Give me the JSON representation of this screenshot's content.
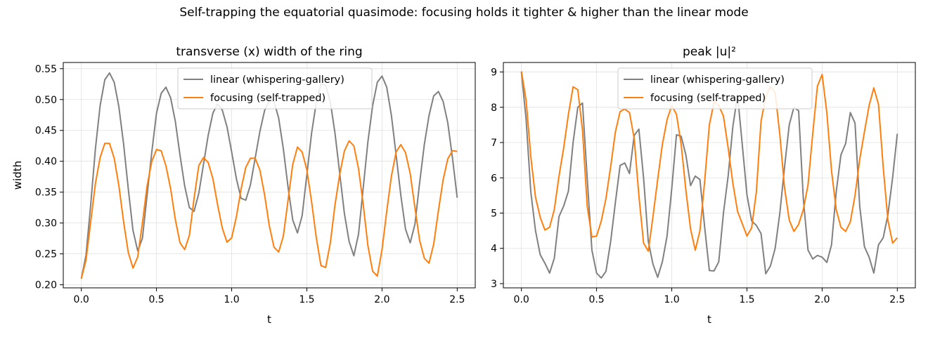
{
  "figure": {
    "title": "Self-trapping the equatorial quasimode: focusing holds it tighter & higher than the linear mode"
  },
  "colors": {
    "linear": "#808080",
    "focusing": "#ff7f0e",
    "grid": "#e0e0e0"
  },
  "chart_data": [
    {
      "type": "line",
      "title": "transverse (x) width of the ring",
      "xlabel": "t",
      "ylabel": "width",
      "xlim": [
        -0.12,
        2.62
      ],
      "ylim": [
        0.195,
        0.56
      ],
      "xticks": [
        0.0,
        0.5,
        1.0,
        1.5,
        2.0,
        2.5
      ],
      "xtick_labels": [
        "0.0",
        "0.5",
        "1.0",
        "1.5",
        "2.0",
        "2.5"
      ],
      "yticks": [
        0.2,
        0.25,
        0.3,
        0.35,
        0.4,
        0.45,
        0.5,
        0.55
      ],
      "ytick_labels": [
        "0.20",
        "0.25",
        "0.30",
        "0.35",
        "0.40",
        "0.45",
        "0.50",
        "0.55"
      ],
      "grid": true,
      "legend": "top-center",
      "series": [
        {
          "name": "linear (whispering-gallery)",
          "x": [
            0.0,
            0.03125,
            0.0625,
            0.09375,
            0.125,
            0.15625,
            0.1875,
            0.21875,
            0.25,
            0.28125,
            0.3125,
            0.34375,
            0.375,
            0.40625,
            0.4375,
            0.46875,
            0.5,
            0.53125,
            0.5625,
            0.59375,
            0.625,
            0.65625,
            0.6875,
            0.71875,
            0.75,
            0.78125,
            0.8125,
            0.84375,
            0.875,
            0.90625,
            0.9375,
            0.96875,
            1.0,
            1.03125,
            1.0625,
            1.09375,
            1.125,
            1.15625,
            1.1875,
            1.21875,
            1.25,
            1.28125,
            1.3125,
            1.34375,
            1.375,
            1.40625,
            1.4375,
            1.46875,
            1.5,
            1.53125,
            1.5625,
            1.59375,
            1.625,
            1.65625,
            1.6875,
            1.71875,
            1.75,
            1.78125,
            1.8125,
            1.84375,
            1.875,
            1.90625,
            1.9375,
            1.96875,
            2.0,
            2.03125,
            2.0625,
            2.09375,
            2.125,
            2.15625,
            2.1875,
            2.21875,
            2.25,
            2.28125,
            2.3125,
            2.34375,
            2.375,
            2.40625,
            2.4375,
            2.46875,
            2.5
          ],
          "values": [
            0.21,
            0.248,
            0.33,
            0.42,
            0.49,
            0.532,
            0.543,
            0.528,
            0.488,
            0.428,
            0.355,
            0.288,
            0.255,
            0.275,
            0.345,
            0.415,
            0.478,
            0.51,
            0.52,
            0.503,
            0.465,
            0.41,
            0.36,
            0.325,
            0.319,
            0.348,
            0.395,
            0.442,
            0.478,
            0.493,
            0.483,
            0.456,
            0.415,
            0.372,
            0.34,
            0.337,
            0.362,
            0.405,
            0.448,
            0.482,
            0.499,
            0.497,
            0.47,
            0.42,
            0.358,
            0.305,
            0.284,
            0.312,
            0.378,
            0.445,
            0.495,
            0.525,
            0.523,
            0.496,
            0.445,
            0.38,
            0.315,
            0.27,
            0.247,
            0.282,
            0.357,
            0.432,
            0.49,
            0.528,
            0.538,
            0.52,
            0.474,
            0.41,
            0.345,
            0.29,
            0.268,
            0.298,
            0.365,
            0.427,
            0.474,
            0.506,
            0.513,
            0.497,
            0.462,
            0.405,
            0.341
          ]
        },
        {
          "name": "focusing (self-trapped)",
          "x": [
            0.0,
            0.03125,
            0.0625,
            0.09375,
            0.125,
            0.15625,
            0.1875,
            0.21875,
            0.25,
            0.28125,
            0.3125,
            0.34375,
            0.375,
            0.40625,
            0.4375,
            0.46875,
            0.5,
            0.53125,
            0.5625,
            0.59375,
            0.625,
            0.65625,
            0.6875,
            0.71875,
            0.75,
            0.78125,
            0.8125,
            0.84375,
            0.875,
            0.90625,
            0.9375,
            0.96875,
            1.0,
            1.03125,
            1.0625,
            1.09375,
            1.125,
            1.15625,
            1.1875,
            1.21875,
            1.25,
            1.28125,
            1.3125,
            1.34375,
            1.375,
            1.40625,
            1.4375,
            1.46875,
            1.5,
            1.53125,
            1.5625,
            1.59375,
            1.625,
            1.65625,
            1.6875,
            1.71875,
            1.75,
            1.78125,
            1.8125,
            1.84375,
            1.875,
            1.90625,
            1.9375,
            1.96875,
            2.0,
            2.03125,
            2.0625,
            2.09375,
            2.125,
            2.15625,
            2.1875,
            2.21875,
            2.25,
            2.28125,
            2.3125,
            2.34375,
            2.375,
            2.40625,
            2.4375,
            2.46875,
            2.5
          ],
          "values": [
            0.21,
            0.24,
            0.302,
            0.364,
            0.406,
            0.429,
            0.429,
            0.405,
            0.36,
            0.302,
            0.252,
            0.227,
            0.245,
            0.3,
            0.36,
            0.4,
            0.419,
            0.417,
            0.393,
            0.356,
            0.306,
            0.268,
            0.257,
            0.28,
            0.34,
            0.393,
            0.406,
            0.398,
            0.372,
            0.33,
            0.292,
            0.269,
            0.276,
            0.31,
            0.355,
            0.39,
            0.405,
            0.405,
            0.386,
            0.346,
            0.296,
            0.261,
            0.253,
            0.279,
            0.337,
            0.395,
            0.423,
            0.415,
            0.386,
            0.335,
            0.277,
            0.231,
            0.228,
            0.268,
            0.33,
            0.379,
            0.417,
            0.433,
            0.425,
            0.388,
            0.33,
            0.263,
            0.222,
            0.214,
            0.257,
            0.319,
            0.376,
            0.415,
            0.427,
            0.414,
            0.38,
            0.325,
            0.272,
            0.243,
            0.235,
            0.266,
            0.32,
            0.37,
            0.404,
            0.417,
            0.416
          ]
        }
      ]
    },
    {
      "type": "line",
      "title": "peak |u|²",
      "xlabel": "t",
      "ylabel": "",
      "xlim": [
        -0.12,
        2.62
      ],
      "ylim": [
        2.88,
        9.27
      ],
      "xticks": [
        0.0,
        0.5,
        1.0,
        1.5,
        2.0,
        2.5
      ],
      "xtick_labels": [
        "0.0",
        "0.5",
        "1.0",
        "1.5",
        "2.0",
        "2.5"
      ],
      "yticks": [
        3,
        4,
        5,
        6,
        7,
        8,
        9
      ],
      "ytick_labels": [
        "3",
        "4",
        "5",
        "6",
        "7",
        "8",
        "9"
      ],
      "grid": true,
      "legend": "top-center",
      "series": [
        {
          "name": "linear (whispering-gallery)",
          "x": [
            0.0,
            0.03125,
            0.0625,
            0.09375,
            0.125,
            0.15625,
            0.1875,
            0.21875,
            0.25,
            0.28125,
            0.3125,
            0.34375,
            0.375,
            0.40625,
            0.4375,
            0.46875,
            0.5,
            0.53125,
            0.5625,
            0.59375,
            0.625,
            0.65625,
            0.6875,
            0.71875,
            0.75,
            0.78125,
            0.8125,
            0.84375,
            0.875,
            0.90625,
            0.9375,
            0.96875,
            1.0,
            1.03125,
            1.0625,
            1.09375,
            1.125,
            1.15625,
            1.1875,
            1.21875,
            1.25,
            1.28125,
            1.3125,
            1.34375,
            1.375,
            1.40625,
            1.4375,
            1.46875,
            1.5,
            1.53125,
            1.5625,
            1.59375,
            1.625,
            1.65625,
            1.6875,
            1.71875,
            1.75,
            1.78125,
            1.8125,
            1.84375,
            1.875,
            1.90625,
            1.9375,
            1.96875,
            2.0,
            2.03125,
            2.0625,
            2.09375,
            2.125,
            2.15625,
            2.1875,
            2.21875,
            2.25,
            2.28125,
            2.3125,
            2.34375,
            2.375,
            2.40625,
            2.4375,
            2.46875,
            2.5
          ],
          "values": [
            9.0,
            7.65,
            5.6,
            4.5,
            3.82,
            3.58,
            3.3,
            3.72,
            4.9,
            5.2,
            5.62,
            7.0,
            8.0,
            8.12,
            6.0,
            3.95,
            3.3,
            3.16,
            3.35,
            4.2,
            5.3,
            6.35,
            6.42,
            6.12,
            7.2,
            7.38,
            6.0,
            4.2,
            3.55,
            3.18,
            3.62,
            4.35,
            5.7,
            7.22,
            7.18,
            6.65,
            5.78,
            6.05,
            5.95,
            4.6,
            3.37,
            3.36,
            3.62,
            5.0,
            6.05,
            7.45,
            8.35,
            6.95,
            5.52,
            4.78,
            4.65,
            4.42,
            3.28,
            3.5,
            4.0,
            5.0,
            6.3,
            7.5,
            8.0,
            7.9,
            5.4,
            3.95,
            3.7,
            3.8,
            3.75,
            3.6,
            4.1,
            5.6,
            6.65,
            6.97,
            7.85,
            7.55,
            5.2,
            4.05,
            3.75,
            3.3,
            4.1,
            4.3,
            4.95,
            6.0,
            7.25
          ]
        },
        {
          "name": "focusing (self-trapped)",
          "x": [
            0.0,
            0.03125,
            0.0625,
            0.09375,
            0.125,
            0.15625,
            0.1875,
            0.21875,
            0.25,
            0.28125,
            0.3125,
            0.34375,
            0.375,
            0.40625,
            0.4375,
            0.46875,
            0.5,
            0.53125,
            0.5625,
            0.59375,
            0.625,
            0.65625,
            0.6875,
            0.71875,
            0.75,
            0.78125,
            0.8125,
            0.84375,
            0.875,
            0.90625,
            0.9375,
            0.96875,
            1.0,
            1.03125,
            1.0625,
            1.09375,
            1.125,
            1.15625,
            1.1875,
            1.21875,
            1.25,
            1.28125,
            1.3125,
            1.34375,
            1.375,
            1.40625,
            1.4375,
            1.46875,
            1.5,
            1.53125,
            1.5625,
            1.59375,
            1.625,
            1.65625,
            1.6875,
            1.71875,
            1.75,
            1.78125,
            1.8125,
            1.84375,
            1.875,
            1.90625,
            1.9375,
            1.96875,
            2.0,
            2.03125,
            2.0625,
            2.09375,
            2.125,
            2.15625,
            2.1875,
            2.21875,
            2.25,
            2.28125,
            2.3125,
            2.34375,
            2.375,
            2.40625,
            2.4375,
            2.46875,
            2.5
          ],
          "values": [
            9.02,
            8.2,
            6.6,
            5.45,
            4.88,
            4.52,
            4.6,
            5.1,
            6.05,
            6.85,
            7.8,
            8.58,
            8.5,
            7.35,
            5.2,
            4.32,
            4.35,
            4.78,
            5.42,
            6.32,
            7.3,
            7.88,
            7.95,
            7.85,
            7.12,
            5.5,
            4.15,
            3.92,
            4.9,
            5.95,
            6.95,
            7.65,
            8.05,
            7.8,
            6.95,
            5.65,
            4.55,
            3.95,
            4.5,
            5.9,
            7.5,
            8.15,
            8.05,
            7.75,
            6.85,
            5.85,
            5.05,
            4.7,
            4.35,
            4.58,
            5.6,
            7.6,
            8.3,
            8.58,
            8.42,
            7.22,
            5.72,
            4.8,
            4.48,
            4.68,
            5.1,
            5.8,
            7.25,
            8.6,
            8.93,
            7.85,
            6.2,
            5.1,
            4.6,
            4.48,
            4.75,
            5.5,
            6.52,
            7.3,
            8.05,
            8.55,
            8.08,
            6.3,
            4.8,
            4.15,
            4.3
          ]
        }
      ]
    }
  ]
}
